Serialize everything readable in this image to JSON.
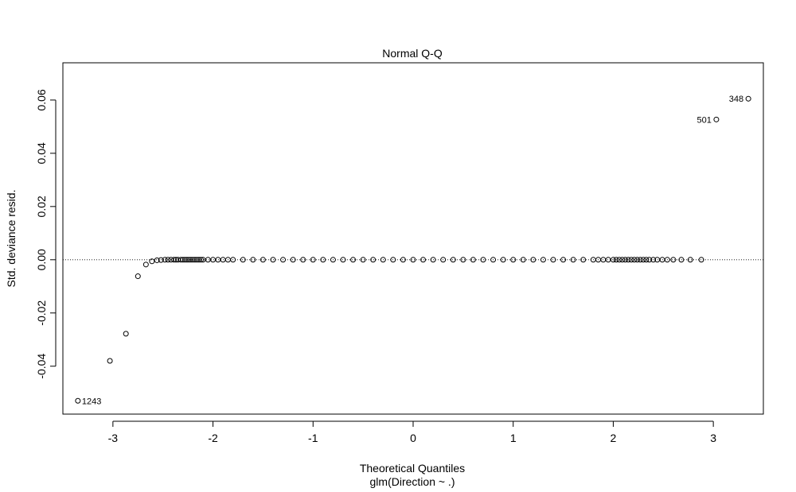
{
  "chart_data": {
    "type": "scatter",
    "title": "Normal Q-Q",
    "xlabel": "Theoretical Quantiles",
    "xlabel_sub": "glm(Direction ~ .)",
    "ylabel": "Std. deviance resid.",
    "xlim": [
      -3.5,
      3.5
    ],
    "ylim": [
      -0.058,
      0.074
    ],
    "x_ticks": [
      -3,
      -2,
      -1,
      0,
      1,
      2,
      3
    ],
    "x_tick_labels": [
      "-3",
      "-2",
      "-1",
      "0",
      "1",
      "2",
      "3"
    ],
    "y_ticks": [
      -0.04,
      -0.02,
      0.0,
      0.02,
      0.04,
      0.06
    ],
    "y_tick_labels": [
      "-0.04",
      "-0.02",
      "0.00",
      "0.02",
      "0.04",
      "0.06"
    ],
    "reference_line": {
      "y": 0,
      "style": "dotted"
    },
    "point_labels": [
      {
        "label": "348",
        "x": 3.35,
        "y": 0.0605,
        "side": "left"
      },
      {
        "label": "501",
        "x": 3.03,
        "y": 0.0527,
        "side": "left"
      },
      {
        "label": "1243",
        "x": -3.35,
        "y": -0.053,
        "side": "right"
      }
    ],
    "series": [
      {
        "points": [
          [
            -3.35,
            -0.053
          ],
          [
            -3.03,
            -0.038
          ],
          [
            -2.87,
            -0.0278
          ],
          [
            -2.75,
            -0.0062
          ],
          [
            -2.67,
            -0.0018
          ],
          [
            -2.61,
            -0.0006
          ],
          [
            -2.56,
            -0.0002
          ],
          [
            -2.52,
            -0.0001
          ],
          [
            -2.48,
            0
          ],
          [
            -2.45,
            0
          ],
          [
            -2.42,
            0
          ],
          [
            -2.39,
            0
          ],
          [
            -2.37,
            0
          ],
          [
            -2.35,
            0
          ],
          [
            -2.32,
            0
          ],
          [
            -2.3,
            0
          ],
          [
            -2.28,
            0
          ],
          [
            -2.26,
            0
          ],
          [
            -2.24,
            0
          ],
          [
            -2.22,
            0
          ],
          [
            -2.2,
            0
          ],
          [
            -2.18,
            0
          ],
          [
            -2.16,
            0
          ],
          [
            -2.14,
            0
          ],
          [
            -2.12,
            0
          ],
          [
            -2.1,
            0
          ],
          [
            -2.05,
            0
          ],
          [
            -2.0,
            0
          ],
          [
            -1.95,
            0
          ],
          [
            -1.9,
            0
          ],
          [
            -1.85,
            0
          ],
          [
            -1.8,
            0
          ],
          [
            -1.7,
            0
          ],
          [
            -1.6,
            0
          ],
          [
            -1.5,
            0
          ],
          [
            -1.4,
            0
          ],
          [
            -1.3,
            0
          ],
          [
            -1.2,
            0
          ],
          [
            -1.1,
            0
          ],
          [
            -1.0,
            0
          ],
          [
            -0.9,
            0
          ],
          [
            -0.8,
            0
          ],
          [
            -0.7,
            0
          ],
          [
            -0.6,
            0
          ],
          [
            -0.5,
            0
          ],
          [
            -0.4,
            0
          ],
          [
            -0.3,
            0
          ],
          [
            -0.2,
            0
          ],
          [
            -0.1,
            0
          ],
          [
            0.0,
            0
          ],
          [
            0.1,
            0
          ],
          [
            0.2,
            0
          ],
          [
            0.3,
            0
          ],
          [
            0.4,
            0
          ],
          [
            0.5,
            0
          ],
          [
            0.6,
            0
          ],
          [
            0.7,
            0
          ],
          [
            0.8,
            0
          ],
          [
            0.9,
            0
          ],
          [
            1.0,
            0
          ],
          [
            1.1,
            0
          ],
          [
            1.2,
            0
          ],
          [
            1.3,
            0
          ],
          [
            1.4,
            0
          ],
          [
            1.5,
            0
          ],
          [
            1.6,
            0
          ],
          [
            1.7,
            0
          ],
          [
            1.8,
            0
          ],
          [
            1.85,
            0
          ],
          [
            1.9,
            0
          ],
          [
            1.95,
            0
          ],
          [
            2.0,
            0
          ],
          [
            2.03,
            0
          ],
          [
            2.06,
            0
          ],
          [
            2.09,
            0
          ],
          [
            2.12,
            0
          ],
          [
            2.15,
            0
          ],
          [
            2.18,
            0
          ],
          [
            2.21,
            0
          ],
          [
            2.24,
            0
          ],
          [
            2.27,
            0
          ],
          [
            2.3,
            0
          ],
          [
            2.33,
            0
          ],
          [
            2.36,
            0
          ],
          [
            2.4,
            0
          ],
          [
            2.44,
            0
          ],
          [
            2.49,
            0
          ],
          [
            2.54,
            0
          ],
          [
            2.6,
            0
          ],
          [
            2.68,
            0
          ],
          [
            2.77,
            0
          ],
          [
            2.88,
            0
          ],
          [
            3.03,
            0.0527
          ],
          [
            3.35,
            0.0605
          ]
        ]
      }
    ]
  }
}
